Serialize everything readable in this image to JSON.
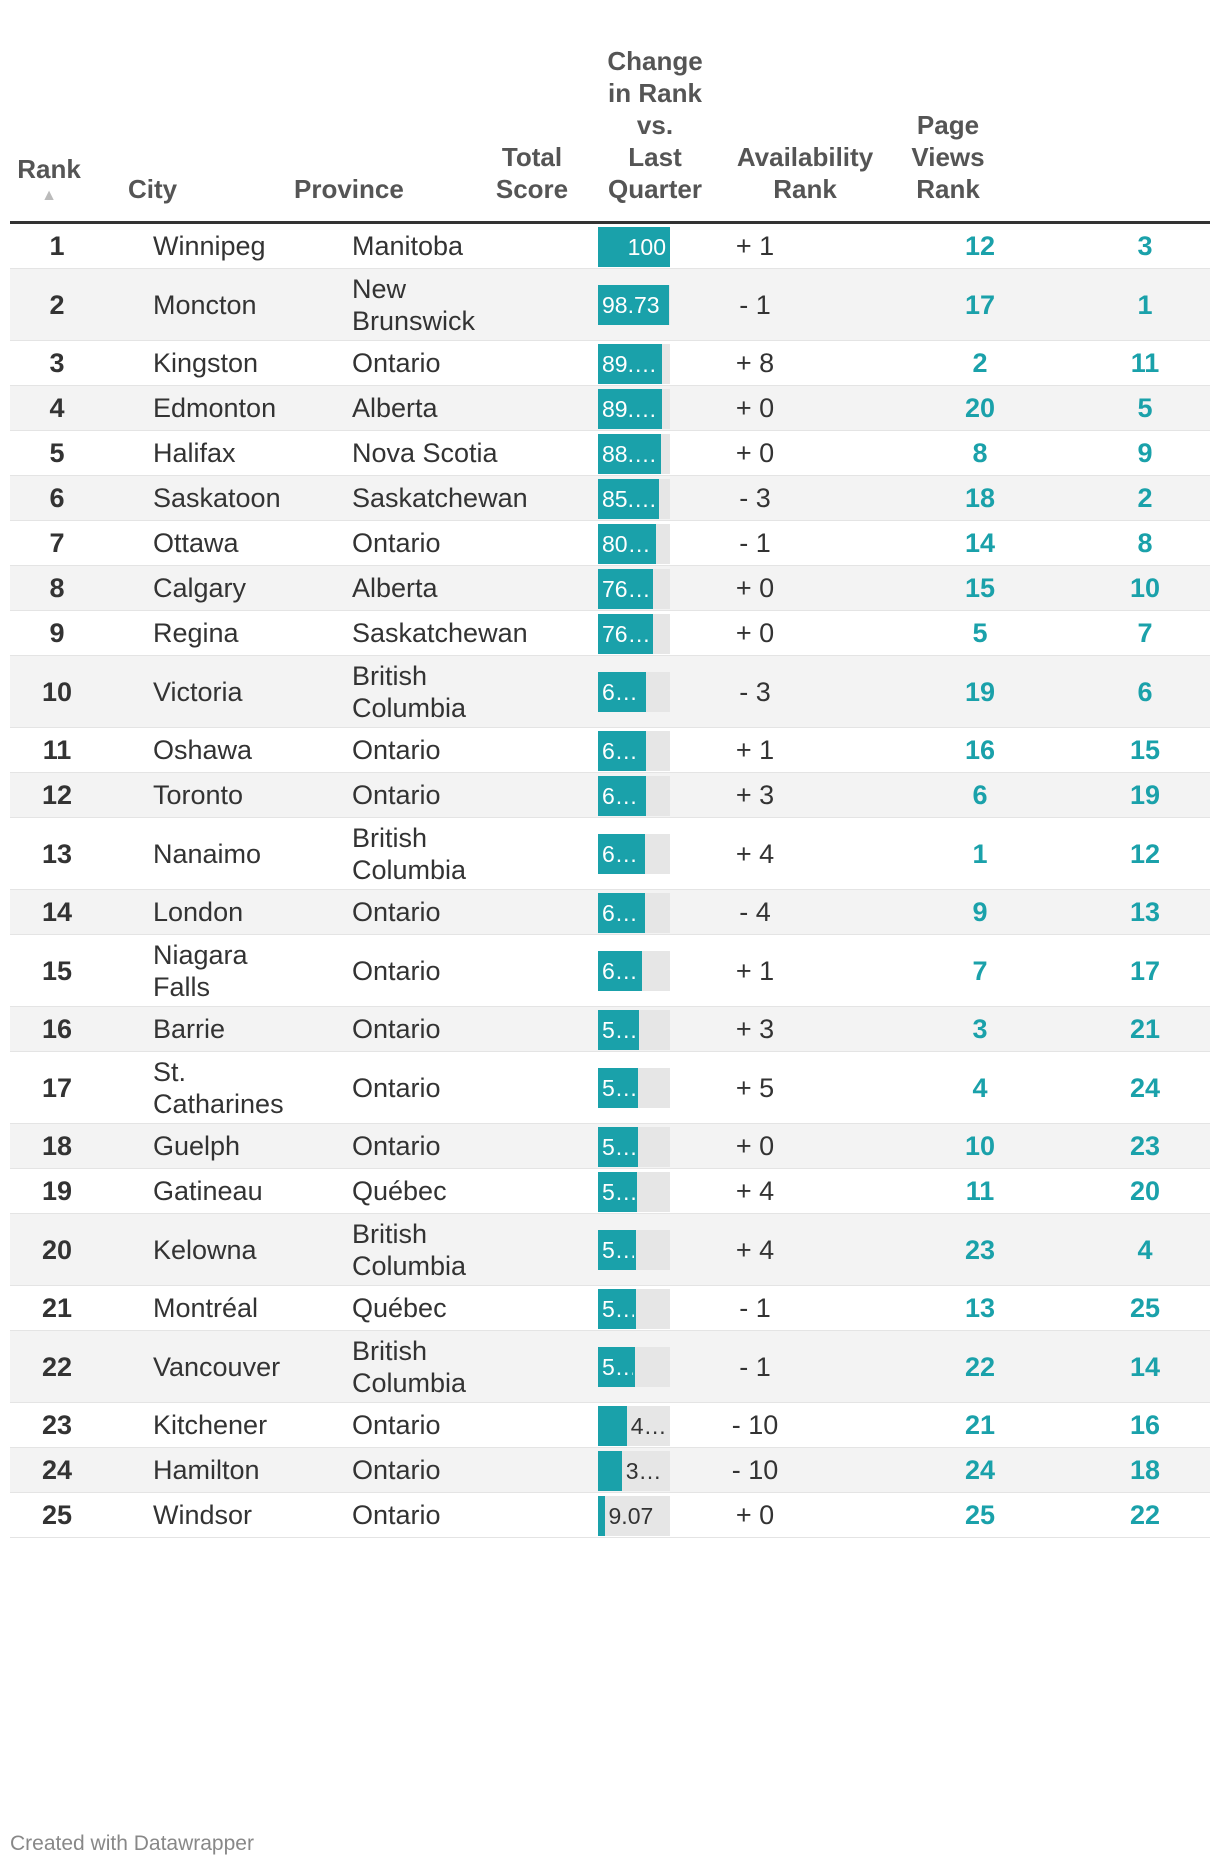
{
  "chart_data": {
    "type": "table",
    "columns": {
      "rank": "Rank",
      "city": "City",
      "province": "Province",
      "total_score": "Total\nScore",
      "change": "Change\nin Rank\nvs.\nLast\nQuarter",
      "availability": "Availability\nRank",
      "page_views": "Page\nViews\nRank"
    },
    "sort_indicator": "▲",
    "score_max": 100,
    "rows": [
      {
        "rank": "1",
        "city": "Winnipeg",
        "province": "Manitoba",
        "score": 100,
        "score_label": "100",
        "change": "+ 1",
        "availability": "12",
        "page_views": "3"
      },
      {
        "rank": "2",
        "city": "Moncton",
        "province": "New Brunswick",
        "score": 98.73,
        "score_label": "98.73",
        "change": "- 1",
        "availability": "17",
        "page_views": "1"
      },
      {
        "rank": "3",
        "city": "Kingston",
        "province": "Ontario",
        "score": 89,
        "score_label": "89.…",
        "change": "+ 8",
        "availability": "2",
        "page_views": "11"
      },
      {
        "rank": "4",
        "city": "Edmonton",
        "province": "Alberta",
        "score": 89,
        "score_label": "89.…",
        "change": "+ 0",
        "availability": "20",
        "page_views": "5"
      },
      {
        "rank": "5",
        "city": "Halifax",
        "province": "Nova Scotia",
        "score": 88,
        "score_label": "88.…",
        "change": "+ 0",
        "availability": "8",
        "page_views": "9"
      },
      {
        "rank": "6",
        "city": "Saskatoon",
        "province": "Saskatchewan",
        "score": 85,
        "score_label": "85.…",
        "change": "- 3",
        "availability": "18",
        "page_views": "2"
      },
      {
        "rank": "7",
        "city": "Ottawa",
        "province": "Ontario",
        "score": 80,
        "score_label": "80…",
        "change": "- 1",
        "availability": "14",
        "page_views": "8"
      },
      {
        "rank": "8",
        "city": "Calgary",
        "province": "Alberta",
        "score": 76,
        "score_label": "76…",
        "change": "+ 0",
        "availability": "15",
        "page_views": "10"
      },
      {
        "rank": "9",
        "city": "Regina",
        "province": "Saskatchewan",
        "score": 76,
        "score_label": "76…",
        "change": "+ 0",
        "availability": "5",
        "page_views": "7"
      },
      {
        "rank": "10",
        "city": "Victoria",
        "province": "British Columbia",
        "score": 67,
        "score_label": "6…",
        "change": "- 3",
        "availability": "19",
        "page_views": "6"
      },
      {
        "rank": "11",
        "city": "Oshawa",
        "province": "Ontario",
        "score": 67,
        "score_label": "6…",
        "change": "+ 1",
        "availability": "16",
        "page_views": "15"
      },
      {
        "rank": "12",
        "city": "Toronto",
        "province": "Ontario",
        "score": 67,
        "score_label": "6…",
        "change": "+ 3",
        "availability": "6",
        "page_views": "19"
      },
      {
        "rank": "13",
        "city": "Nanaimo",
        "province": "British Columbia",
        "score": 65,
        "score_label": "6…",
        "change": "+ 4",
        "availability": "1",
        "page_views": "12"
      },
      {
        "rank": "14",
        "city": "London",
        "province": "Ontario",
        "score": 65,
        "score_label": "6…",
        "change": "- 4",
        "availability": "9",
        "page_views": "13"
      },
      {
        "rank": "15",
        "city": "Niagara Falls",
        "province": "Ontario",
        "score": 61,
        "score_label": "6…",
        "change": "+ 1",
        "availability": "7",
        "page_views": "17"
      },
      {
        "rank": "16",
        "city": "Barrie",
        "province": "Ontario",
        "score": 57,
        "score_label": "5…",
        "change": "+ 3",
        "availability": "3",
        "page_views": "21"
      },
      {
        "rank": "17",
        "city": "St. Catharines",
        "province": "Ontario",
        "score": 56,
        "score_label": "5…",
        "change": "+ 5",
        "availability": "4",
        "page_views": "24"
      },
      {
        "rank": "18",
        "city": "Guelph",
        "province": "Ontario",
        "score": 55,
        "score_label": "5…",
        "change": "+ 0",
        "availability": "10",
        "page_views": "23"
      },
      {
        "rank": "19",
        "city": "Gatineau",
        "province": "Québec",
        "score": 54,
        "score_label": "5…",
        "change": "+ 4",
        "availability": "11",
        "page_views": "20"
      },
      {
        "rank": "20",
        "city": "Kelowna",
        "province": "British Columbia",
        "score": 53,
        "score_label": "5…",
        "change": "+ 4",
        "availability": "23",
        "page_views": "4"
      },
      {
        "rank": "21",
        "city": "Montréal",
        "province": "Québec",
        "score": 53,
        "score_label": "5…",
        "change": "- 1",
        "availability": "13",
        "page_views": "25"
      },
      {
        "rank": "22",
        "city": "Vancouver",
        "province": "British Columbia",
        "score": 52,
        "score_label": "5…",
        "change": "- 1",
        "availability": "22",
        "page_views": "14"
      },
      {
        "rank": "23",
        "city": "Kitchener",
        "province": "Ontario",
        "score": 40,
        "score_label": "4…",
        "change": "- 10",
        "availability": "21",
        "page_views": "16"
      },
      {
        "rank": "24",
        "city": "Hamilton",
        "province": "Ontario",
        "score": 33,
        "score_label": "3…",
        "change": "- 10",
        "availability": "24",
        "page_views": "18"
      },
      {
        "rank": "25",
        "city": "Windsor",
        "province": "Ontario",
        "score": 9.07,
        "score_label": "9.07",
        "change": "+ 0",
        "availability": "25",
        "page_views": "22"
      }
    ],
    "colors": {
      "bar": "#1aa1aa",
      "bar_track": "#e6e6e6",
      "rank_highlight": "#1aa1aa",
      "text": "#333333"
    }
  },
  "footer": "Created with Datawrapper"
}
